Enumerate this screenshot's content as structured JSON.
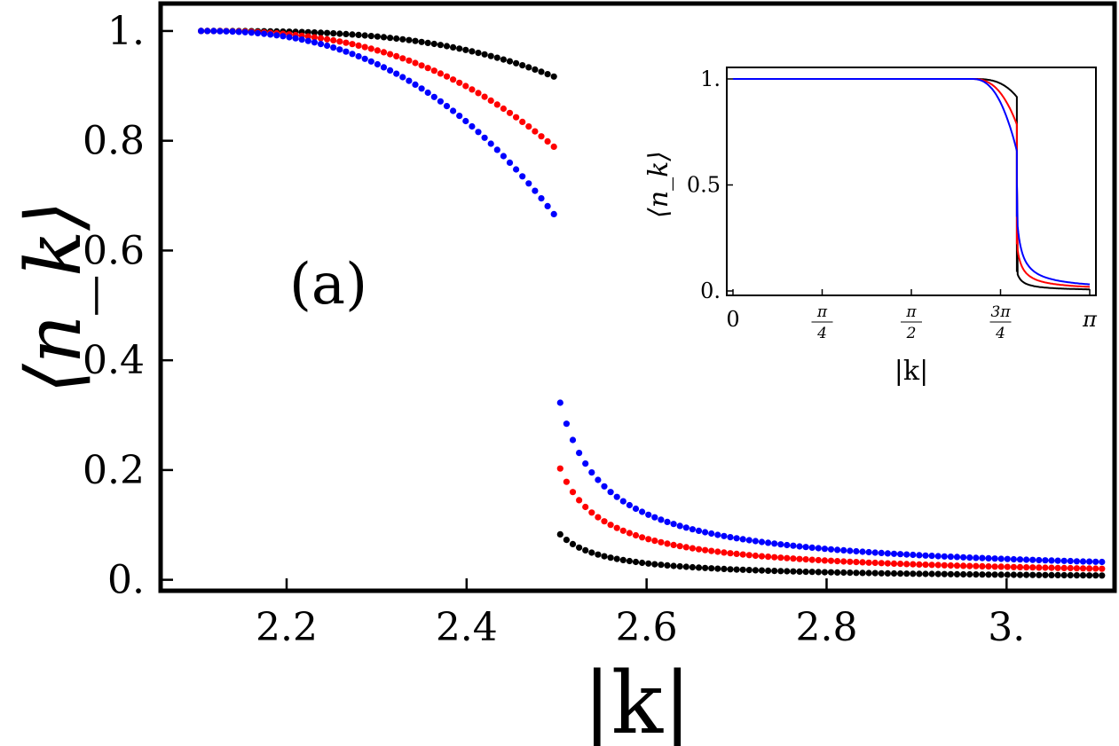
{
  "chart_data": [
    {
      "type": "scatter",
      "panel_label": "(a)",
      "xlabel": "|k|",
      "ylabel": "⟨n_k⟩",
      "xlim": [
        2.06,
        3.12
      ],
      "ylim": [
        -0.02,
        1.05
      ],
      "xticks": [
        2.2,
        2.4,
        2.6,
        2.8,
        3.0
      ],
      "xtick_labels": [
        "2.2",
        "2.4",
        "2.6",
        "2.8",
        "3."
      ],
      "yticks": [
        0.0,
        0.2,
        0.4,
        0.6,
        0.8,
        1.0
      ],
      "ytick_labels": [
        "0.",
        "0.2",
        "0.4",
        "0.6",
        "0.8",
        "1."
      ],
      "grid": false,
      "legend": "none",
      "x_start": 2.105,
      "x_step": 0.007,
      "jump_at": 2.5,
      "series": [
        {
          "color": "#000000",
          "value_at_left_of_jump": 0.915,
          "value_at_right_of_jump": 0.09,
          "value_near_x_2_3": 0.99,
          "value_near_x_2_6": 0.03,
          "value_near_x_2_8": 0.005
        },
        {
          "color": "#ff0000",
          "value_at_left_of_jump": 0.785,
          "value_at_right_of_jump": 0.22,
          "value_near_x_2_3": 0.965,
          "value_near_x_2_6": 0.075,
          "value_near_x_2_8": 0.014
        },
        {
          "color": "#0000ff",
          "value_at_left_of_jump": 0.66,
          "value_at_right_of_jump": 0.35,
          "value_near_x_2_3": 0.94,
          "value_near_x_2_6": 0.12,
          "value_near_x_2_8": 0.03
        }
      ]
    },
    {
      "type": "line",
      "xlabel": "|k|",
      "ylabel": "⟨n_k⟩",
      "xlim": [
        0,
        3.1416
      ],
      "ylim": [
        0,
        1
      ],
      "xticks": [
        0,
        0.7854,
        1.5708,
        2.3562,
        3.1416
      ],
      "xtick_labels": [
        "0",
        "π/4",
        "π/2",
        "3π/4",
        "π"
      ],
      "yticks": [
        0,
        0.5,
        1
      ],
      "ytick_labels": [
        "0.",
        "0.5",
        "1."
      ],
      "grid": false,
      "legend": "none",
      "jump_at": 2.5,
      "series": [
        {
          "color": "#000000",
          "value_at_left_of_jump": 0.915,
          "value_at_right_of_jump": 0.09
        },
        {
          "color": "#ff0000",
          "value_at_left_of_jump": 0.785,
          "value_at_right_of_jump": 0.22
        },
        {
          "color": "#0000ff",
          "value_at_left_of_jump": 0.66,
          "value_at_right_of_jump": 0.35
        }
      ]
    }
  ]
}
